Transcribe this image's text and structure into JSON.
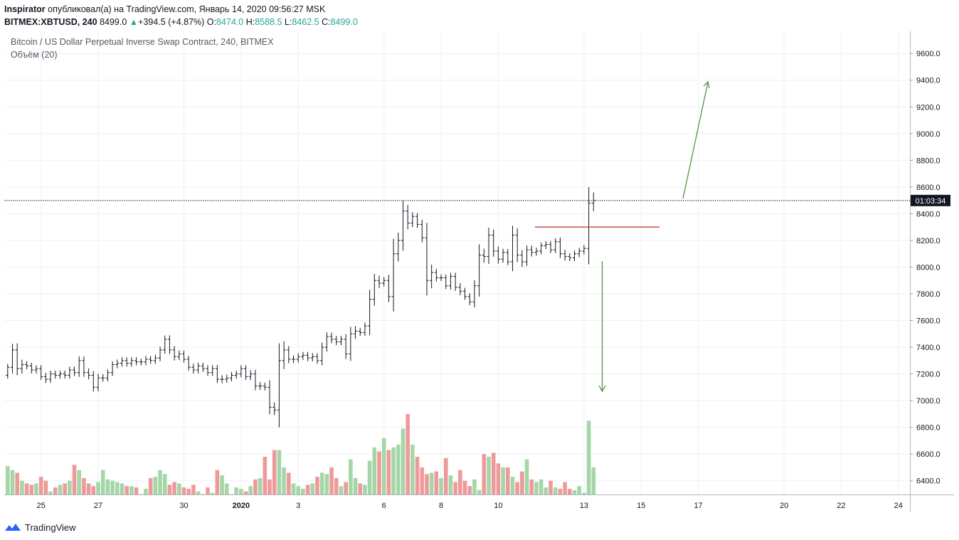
{
  "header": {
    "author": "Inspirator",
    "published_text": "опубликовал(а) на TradingView.com, Январь 14, 2020 09:56:27 MSK",
    "symbol": "BITMEX:XBTUSD, 240",
    "last_price": "8499.0",
    "change": "+394.5 (+4.87%)",
    "o_label": "O:",
    "o_value": "8474.0",
    "h_label": "H:",
    "h_value": "8588.5",
    "l_label": "L:",
    "l_value": "8462.5",
    "c_label": "C:",
    "c_value": "8499.0",
    "up_color": "#26a69a"
  },
  "chart_title": "Bitcoin / US Dollar Perpetual Inverse Swap Contract, 240, BITMEX",
  "volume_title": "Объём (20)",
  "countdown_label": "01:03:34",
  "footer": {
    "brand": "TradingView",
    "logo_icon": "tradingview-logo-icon"
  },
  "colors": {
    "bar": "#131722",
    "vol_up": "#a5d6a7",
    "vol_down": "#ef9a9a",
    "grid": "#eef0f3",
    "arrow": "#4a8a3a",
    "resistance": "#c62828",
    "axis_text": "#131722"
  },
  "chart_data": {
    "type": "ohlc-bar",
    "price_ticks": [
      6400,
      6600,
      6800,
      7000,
      7200,
      7400,
      7600,
      7800,
      8000,
      8200,
      8400,
      8600,
      8800,
      9000,
      9200,
      9400,
      9600
    ],
    "price_tick_labels": [
      "6400.0",
      "6600.0",
      "6800.0",
      "7000.0",
      "7200.0",
      "7400.0",
      "7600.0",
      "7800.0",
      "8000.0",
      "8200.0",
      "8400.0",
      "8600.0",
      "8800.0",
      "9000.0",
      "9200.0",
      "9400.0",
      "9600.0"
    ],
    "last_price": 8499,
    "resistance_level": 8300,
    "x_axis_ticks": [
      {
        "label": "25",
        "bar": 7,
        "bold": false
      },
      {
        "label": "27",
        "bar": 19,
        "bold": false
      },
      {
        "label": "30",
        "bar": 37,
        "bold": false
      },
      {
        "label": "2020",
        "bar": 49,
        "bold": true
      },
      {
        "label": "3",
        "bar": 61,
        "bold": false
      },
      {
        "label": "6",
        "bar": 79,
        "bold": false
      },
      {
        "label": "8",
        "bar": 91,
        "bold": false
      },
      {
        "label": "10",
        "bar": 103,
        "bold": false
      },
      {
        "label": "13",
        "bar": 121,
        "bold": false
      },
      {
        "label": "15",
        "bar": 133,
        "bold": false
      },
      {
        "label": "17",
        "bar": 145,
        "bold": false
      },
      {
        "label": "20",
        "bar": 163,
        "bold": false
      },
      {
        "label": "22",
        "bar": 175,
        "bold": false
      },
      {
        "label": "24",
        "bar": 187,
        "bold": false
      }
    ],
    "closes": [
      7250,
      7380,
      7240,
      7270,
      7260,
      7230,
      7240,
      7180,
      7160,
      7200,
      7190,
      7200,
      7190,
      7230,
      7210,
      7300,
      7210,
      7190,
      7100,
      7170,
      7170,
      7210,
      7270,
      7280,
      7300,
      7280,
      7300,
      7290,
      7290,
      7310,
      7300,
      7320,
      7380,
      7460,
      7380,
      7330,
      7350,
      7310,
      7250,
      7230,
      7260,
      7240,
      7210,
      7240,
      7160,
      7160,
      7170,
      7190,
      7200,
      7240,
      7180,
      7200,
      7110,
      7110,
      7100,
      6950,
      6930,
      7300,
      7380,
      7310,
      7310,
      7330,
      7340,
      7320,
      7330,
      7300,
      7400,
      7480,
      7460,
      7440,
      7460,
      7350,
      7500,
      7520,
      7510,
      7560,
      7760,
      7900,
      7880,
      7900,
      7780,
      8100,
      8200,
      8420,
      8330,
      8380,
      8320,
      8220,
      7900,
      7960,
      7920,
      7920,
      7860,
      7930,
      7850,
      7820,
      7780,
      7740,
      7860,
      8090,
      8080,
      8240,
      8120,
      8060,
      8110,
      8040,
      8240,
      8090,
      8040,
      8130,
      8110,
      8120,
      8160,
      8170,
      8130,
      8190,
      8100,
      8080,
      8070,
      8100,
      8120,
      8140,
      8480,
      8499
    ],
    "volumes": [
      6510,
      6480,
      6460,
      6400,
      6380,
      6370,
      6380,
      6430,
      6400,
      6320,
      6350,
      6370,
      6380,
      6400,
      6520,
      6480,
      6420,
      6380,
      6360,
      6390,
      6480,
      6410,
      6400,
      6390,
      6380,
      6360,
      6360,
      6350,
      6300,
      6340,
      6420,
      6430,
      6480,
      6450,
      6370,
      6390,
      6380,
      6350,
      6340,
      6370,
      6320,
      6300,
      6350,
      6310,
      6480,
      6440,
      6380,
      6300,
      6350,
      6340,
      6320,
      6360,
      6410,
      6420,
      6580,
      6410,
      6630,
      6630,
      6500,
      6460,
      6380,
      6360,
      6340,
      6370,
      6380,
      6430,
      6460,
      6450,
      6500,
      6420,
      6360,
      6390,
      6560,
      6420,
      6380,
      6370,
      6550,
      6650,
      6620,
      6720,
      6630,
      6650,
      6670,
      6790,
      6900,
      6670,
      6580,
      6500,
      6450,
      6460,
      6470,
      6420,
      6570,
      6440,
      6390,
      6480,
      6400,
      6360,
      6410,
      6330,
      6600,
      6580,
      6610,
      6530,
      6500,
      6500,
      6430,
      6390,
      6470,
      6560,
      6410,
      6390,
      6410,
      6350,
      6400,
      6350,
      6340,
      6390,
      6340,
      6330,
      6360,
      6310,
      6850,
      6500
    ]
  }
}
